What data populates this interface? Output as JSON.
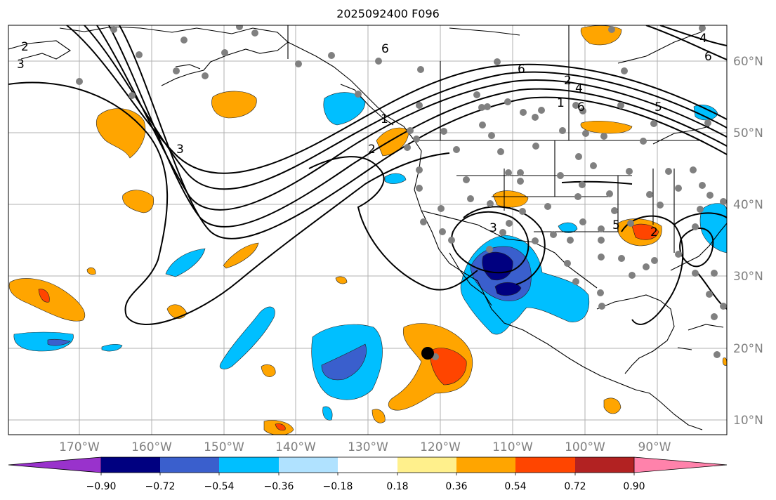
{
  "title": "2025092400 F096",
  "map": {
    "lon_labels": [
      "170°W",
      "160°W",
      "150°W",
      "140°W",
      "130°W",
      "120°W",
      "110°W",
      "100°W",
      "90°W"
    ],
    "lat_labels": [
      "60°N",
      "50°N",
      "40°N",
      "30°N",
      "20°N",
      "10°N"
    ],
    "contour_labels": [
      "2",
      "3",
      "6",
      "6",
      "2",
      "4",
      "1",
      "6",
      "5",
      "3",
      "1",
      "4",
      "6",
      "3",
      "2",
      "2",
      "5"
    ]
  },
  "colorbar": {
    "ticks": [
      "−0.90",
      "−0.72",
      "−0.54",
      "−0.36",
      "−0.18",
      "0.18",
      "0.36",
      "0.54",
      "0.72",
      "0.90"
    ],
    "colors": [
      "#9932cc",
      "#000080",
      "#3a5fcd",
      "#00bfff",
      "#b0e2ff",
      "#ffffff",
      "#fff08c",
      "#ffa500",
      "#ff4500",
      "#b22222",
      "#ff82ab"
    ]
  }
}
